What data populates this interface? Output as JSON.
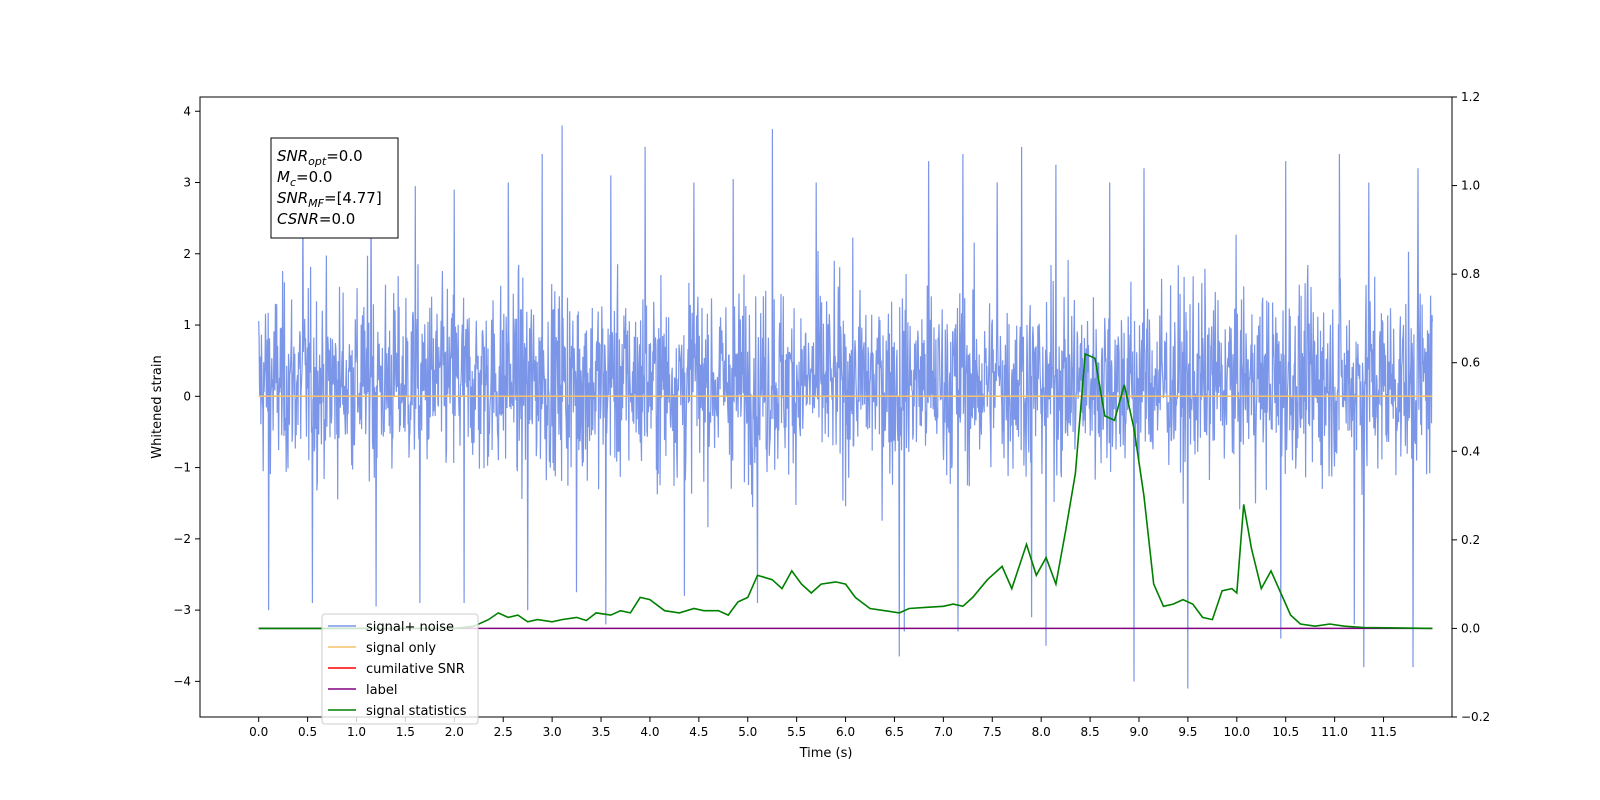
{
  "chart_data": {
    "type": "line",
    "xlabel": "Time (s)",
    "ylabel": "Whitened strain",
    "xlim": [
      -0.6,
      12.2
    ],
    "ylim": [
      -4.5,
      4.2
    ],
    "y2lim": [
      -0.2,
      1.2
    ],
    "x_ticks": [
      "0.0",
      "0.5",
      "1.0",
      "1.5",
      "2.0",
      "2.5",
      "3.0",
      "3.5",
      "4.0",
      "4.5",
      "5.0",
      "5.5",
      "6.0",
      "6.5",
      "7.0",
      "7.5",
      "8.0",
      "8.5",
      "9.0",
      "9.5",
      "10.0",
      "10.5",
      "11.0",
      "11.5"
    ],
    "y_ticks": [
      "4",
      "3",
      "2",
      "1",
      "0",
      "−1",
      "−2",
      "−3",
      "−4"
    ],
    "y2_ticks": [
      "1.2",
      "1.0",
      "0.8",
      "0.6",
      "0.4",
      "0.2",
      "0.0",
      "−0.2"
    ],
    "grid": false,
    "legend_location": "lower-left",
    "annotation": {
      "lines": [
        {
          "base": "SNR",
          "sub": "opt",
          "value": "=0.0"
        },
        {
          "base": "M",
          "sub": "c",
          "value": "=0.0"
        },
        {
          "base": "SNR",
          "sub": "MF",
          "value": "=[4.77]"
        },
        {
          "base": "CSNR",
          "sub": "",
          "value": "=0.0"
        }
      ]
    },
    "series": [
      {
        "name": "signal+ noise",
        "color": "#7b96e8",
        "axis": "left",
        "x_range": [
          0.0,
          12.0
        ],
        "typical_range": [
          -1.8,
          2.2
        ],
        "peaks": [
          [
            0.1,
            2.7
          ],
          [
            0.45,
            2.9
          ],
          [
            1.15,
            3.0
          ],
          [
            1.6,
            2.95
          ],
          [
            2.0,
            2.9
          ],
          [
            2.55,
            3.0
          ],
          [
            2.9,
            3.4
          ],
          [
            3.1,
            3.8
          ],
          [
            3.6,
            3.1
          ],
          [
            3.95,
            3.5
          ],
          [
            4.45,
            3.0
          ],
          [
            4.85,
            3.05
          ],
          [
            5.25,
            3.75
          ],
          [
            5.7,
            3.0
          ],
          [
            6.55,
            3.4
          ],
          [
            6.85,
            3.3
          ],
          [
            7.2,
            3.4
          ],
          [
            7.55,
            3.0
          ],
          [
            7.8,
            3.5
          ],
          [
            8.15,
            3.25
          ],
          [
            8.7,
            3.0
          ],
          [
            9.05,
            3.2
          ],
          [
            9.5,
            3.05
          ],
          [
            10.5,
            3.3
          ],
          [
            11.05,
            3.4
          ],
          [
            11.35,
            3.0
          ],
          [
            11.85,
            3.2
          ]
        ],
        "troughs": [
          [
            0.1,
            -3.0
          ],
          [
            0.55,
            -2.9
          ],
          [
            1.2,
            -2.95
          ],
          [
            1.65,
            -2.9
          ],
          [
            2.1,
            -2.9
          ],
          [
            2.75,
            -3.0
          ],
          [
            3.25,
            -2.75
          ],
          [
            3.55,
            -3.2
          ],
          [
            4.35,
            -2.8
          ],
          [
            5.1,
            -2.9
          ],
          [
            6.55,
            -3.65
          ],
          [
            6.6,
            -3.3
          ],
          [
            7.15,
            -3.3
          ],
          [
            7.9,
            -3.1
          ],
          [
            8.05,
            -3.5
          ],
          [
            8.95,
            -4.0
          ],
          [
            9.5,
            -4.1
          ],
          [
            10.45,
            -3.4
          ],
          [
            11.2,
            -3.2
          ],
          [
            11.3,
            -3.8
          ],
          [
            11.8,
            -3.8
          ]
        ]
      },
      {
        "name": "signal only",
        "color": "#f5c26b",
        "axis": "left",
        "points": [
          [
            0.0,
            0.0
          ],
          [
            12.0,
            0.0
          ]
        ]
      },
      {
        "name": "cumilative SNR",
        "color": "#ff0000",
        "axis": "left",
        "points": []
      },
      {
        "name": "label",
        "color": "#800080",
        "axis": "right",
        "points": [
          [
            0.0,
            0.0
          ],
          [
            12.0,
            0.0
          ]
        ]
      },
      {
        "name": "signal statistics",
        "color": "#008000",
        "axis": "right",
        "points": [
          [
            0.0,
            0.0
          ],
          [
            2.0,
            0.0
          ],
          [
            2.2,
            0.005
          ],
          [
            2.35,
            0.02
          ],
          [
            2.45,
            0.035
          ],
          [
            2.55,
            0.025
          ],
          [
            2.65,
            0.03
          ],
          [
            2.75,
            0.015
          ],
          [
            2.85,
            0.02
          ],
          [
            3.0,
            0.015
          ],
          [
            3.1,
            0.02
          ],
          [
            3.25,
            0.025
          ],
          [
            3.35,
            0.018
          ],
          [
            3.45,
            0.035
          ],
          [
            3.6,
            0.03
          ],
          [
            3.7,
            0.04
          ],
          [
            3.8,
            0.035
          ],
          [
            3.9,
            0.07
          ],
          [
            4.0,
            0.065
          ],
          [
            4.15,
            0.04
          ],
          [
            4.3,
            0.035
          ],
          [
            4.45,
            0.045
          ],
          [
            4.55,
            0.04
          ],
          [
            4.7,
            0.04
          ],
          [
            4.8,
            0.03
          ],
          [
            4.9,
            0.06
          ],
          [
            5.0,
            0.07
          ],
          [
            5.1,
            0.12
          ],
          [
            5.25,
            0.11
          ],
          [
            5.35,
            0.09
          ],
          [
            5.45,
            0.13
          ],
          [
            5.55,
            0.1
          ],
          [
            5.65,
            0.08
          ],
          [
            5.75,
            0.1
          ],
          [
            5.9,
            0.105
          ],
          [
            6.0,
            0.1
          ],
          [
            6.1,
            0.07
          ],
          [
            6.25,
            0.045
          ],
          [
            6.4,
            0.04
          ],
          [
            6.55,
            0.035
          ],
          [
            6.65,
            0.045
          ],
          [
            6.85,
            0.048
          ],
          [
            7.0,
            0.05
          ],
          [
            7.1,
            0.055
          ],
          [
            7.2,
            0.05
          ],
          [
            7.3,
            0.07
          ],
          [
            7.45,
            0.11
          ],
          [
            7.6,
            0.14
          ],
          [
            7.7,
            0.09
          ],
          [
            7.85,
            0.19
          ],
          [
            7.95,
            0.12
          ],
          [
            8.05,
            0.16
          ],
          [
            8.15,
            0.1
          ],
          [
            8.25,
            0.22
          ],
          [
            8.35,
            0.35
          ],
          [
            8.45,
            0.62
          ],
          [
            8.55,
            0.61
          ],
          [
            8.65,
            0.48
          ],
          [
            8.75,
            0.47
          ],
          [
            8.85,
            0.55
          ],
          [
            8.95,
            0.45
          ],
          [
            9.05,
            0.3
          ],
          [
            9.15,
            0.1
          ],
          [
            9.25,
            0.05
          ],
          [
            9.35,
            0.055
          ],
          [
            9.45,
            0.065
          ],
          [
            9.55,
            0.055
          ],
          [
            9.65,
            0.025
          ],
          [
            9.75,
            0.02
          ],
          [
            9.85,
            0.085
          ],
          [
            9.95,
            0.09
          ],
          [
            10.0,
            0.08
          ],
          [
            10.07,
            0.28
          ],
          [
            10.15,
            0.18
          ],
          [
            10.25,
            0.09
          ],
          [
            10.35,
            0.13
          ],
          [
            10.45,
            0.08
          ],
          [
            10.55,
            0.03
          ],
          [
            10.65,
            0.01
          ],
          [
            10.8,
            0.005
          ],
          [
            10.95,
            0.01
          ],
          [
            11.1,
            0.005
          ],
          [
            11.3,
            0.002
          ],
          [
            12.0,
            0.0
          ]
        ]
      }
    ]
  }
}
